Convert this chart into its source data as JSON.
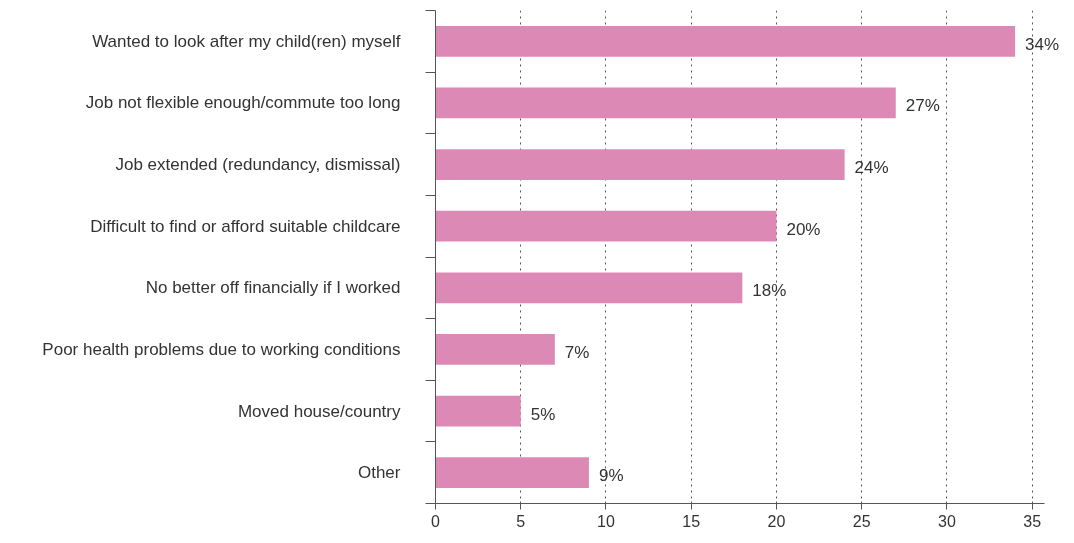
{
  "chart_data": {
    "type": "bar",
    "orientation": "horizontal",
    "categories": [
      "Wanted to look after my child(ren) myself",
      "Job not flexible enough/commute too long",
      "Job extended (redundancy, dismissal)",
      "Difficult to find or afford suitable childcare",
      "No better off financially if I worked",
      "Poor health problems due to working conditions",
      "Moved house/country",
      "Other"
    ],
    "values": [
      34,
      27,
      24,
      20,
      18,
      7,
      5,
      9
    ],
    "value_labels": [
      "34%",
      "27%",
      "24%",
      "20%",
      "18%",
      "7%",
      "5%",
      "9%"
    ],
    "color": "#dc8ab5",
    "xlim": [
      0,
      35.7
    ],
    "xticks": [
      0,
      5,
      10,
      15,
      20,
      25,
      30,
      35
    ],
    "grid": "x"
  }
}
